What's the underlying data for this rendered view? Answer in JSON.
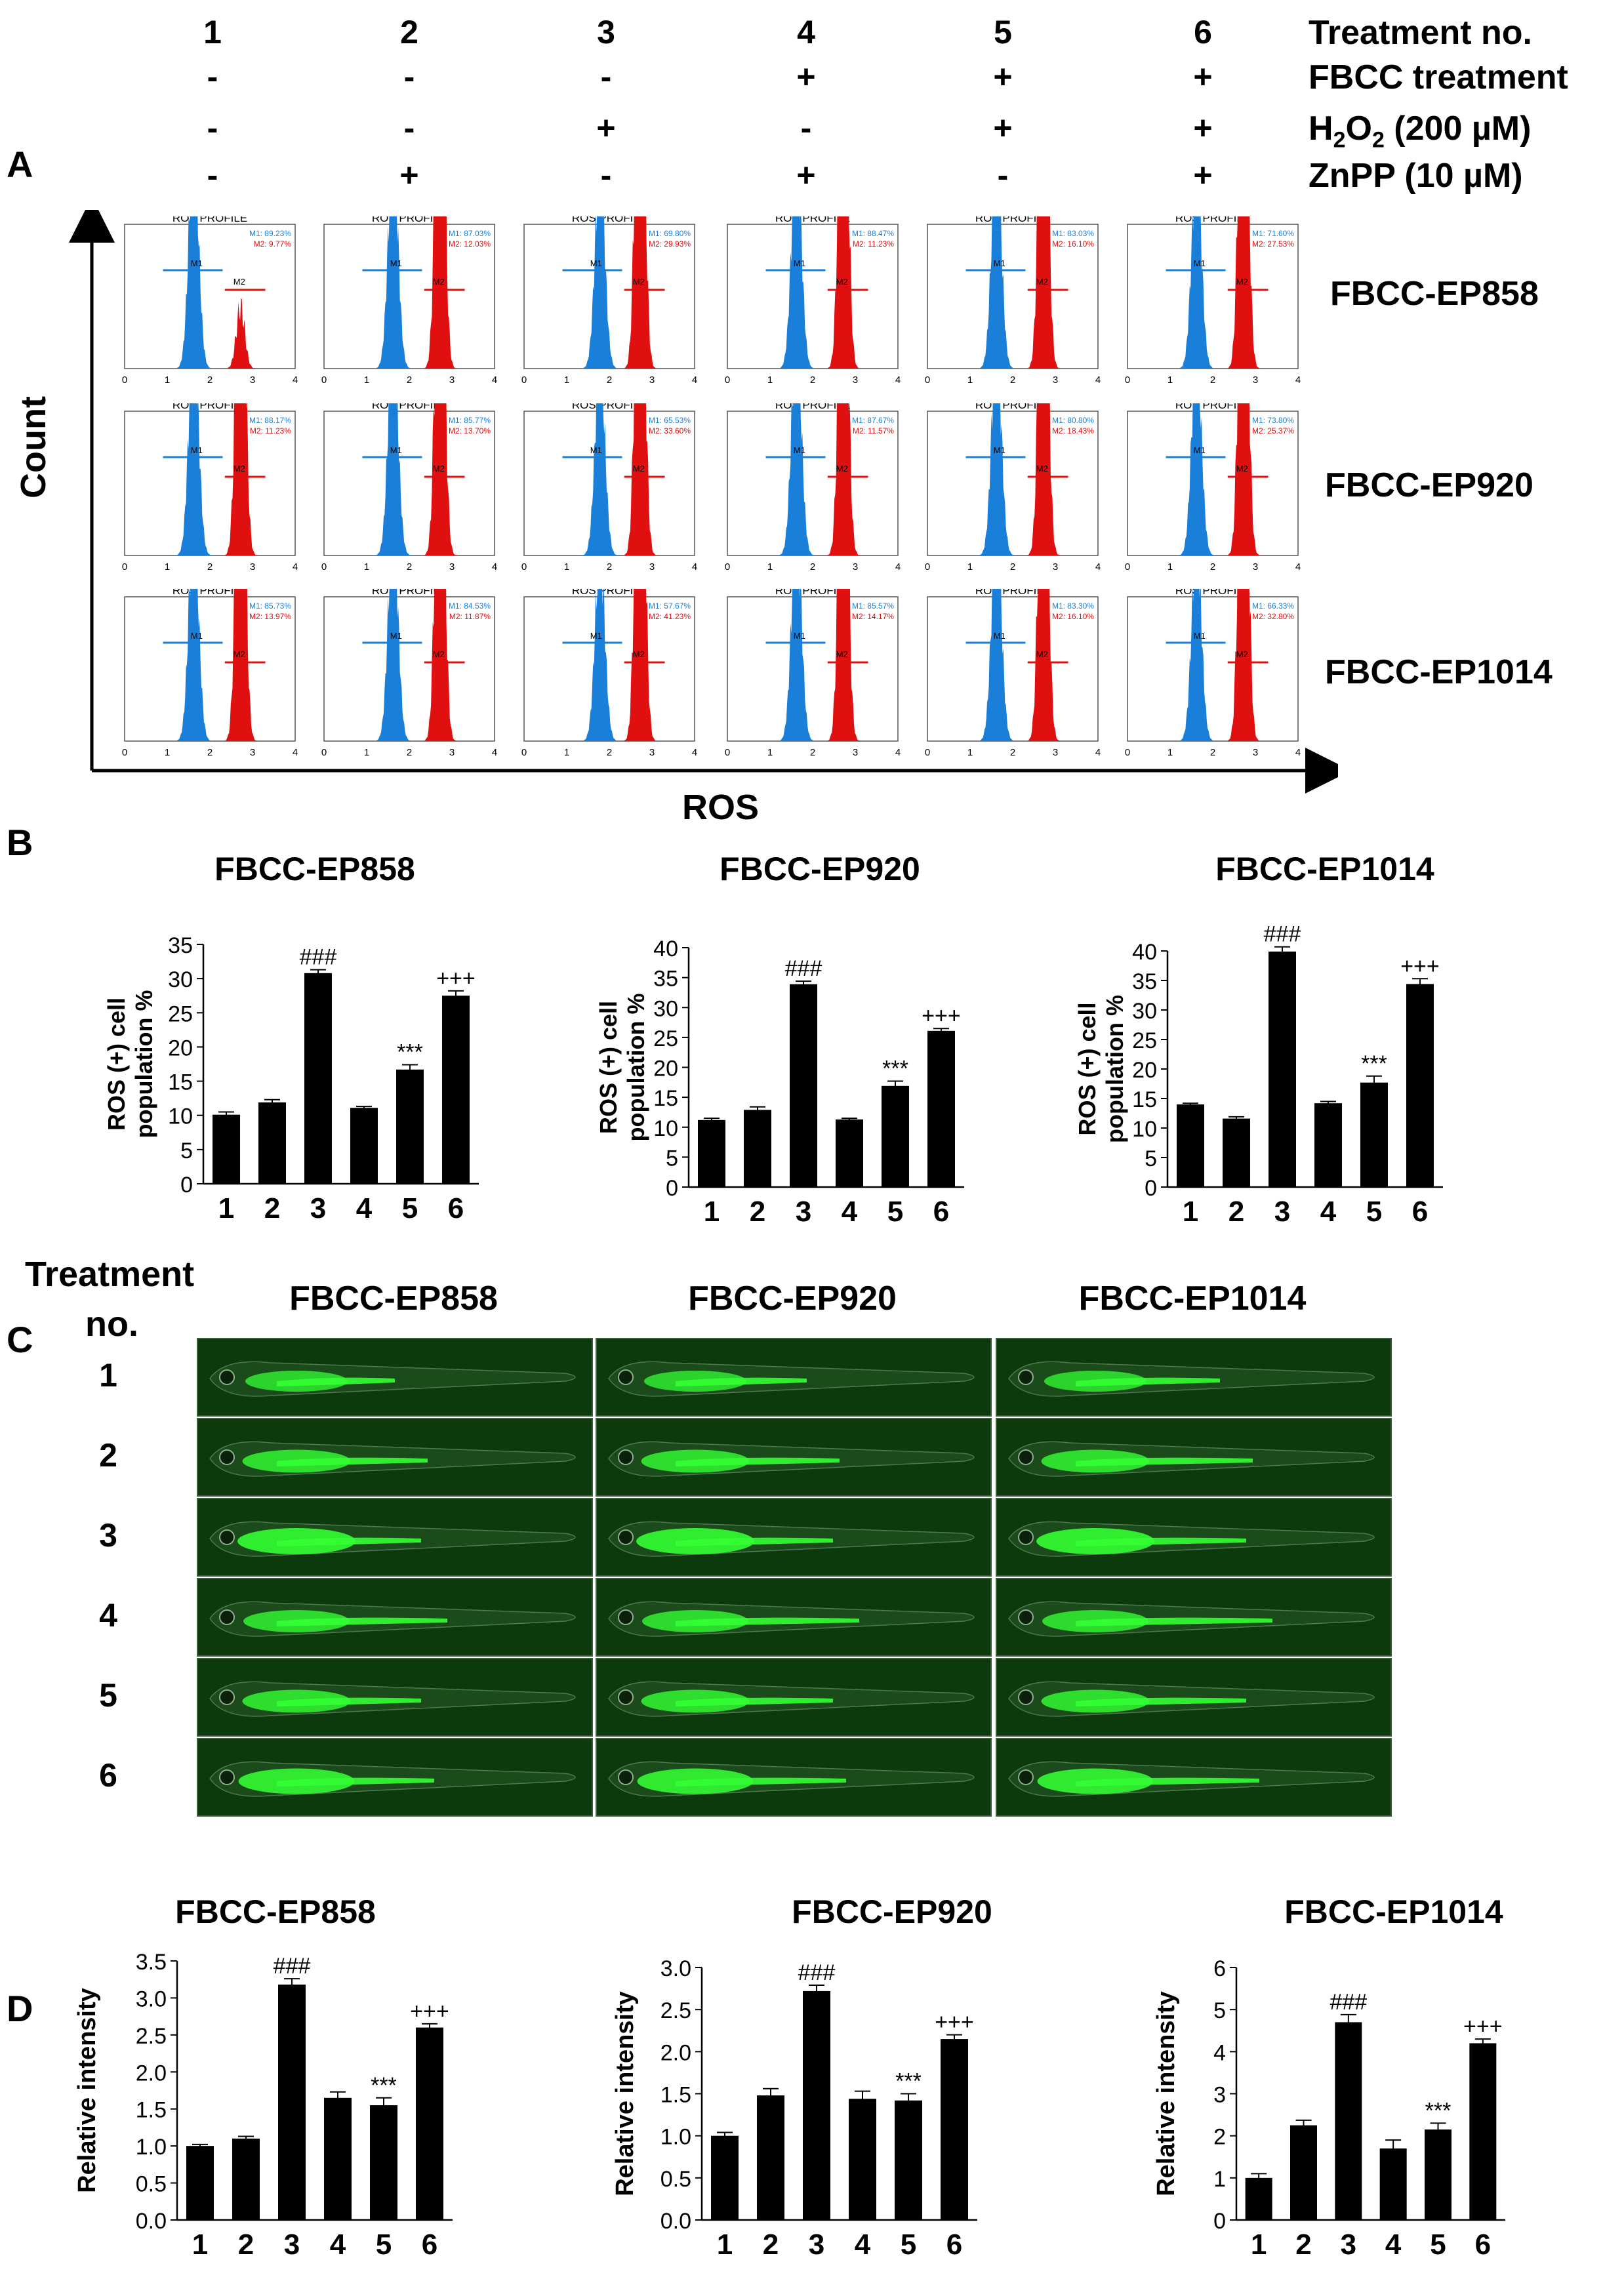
{
  "treatments": {
    "numbers": [
      "1",
      "2",
      "3",
      "4",
      "5",
      "6"
    ],
    "rows": [
      {
        "label": "Treatment no.",
        "values": [
          "1",
          "2",
          "3",
          "4",
          "5",
          "6"
        ]
      },
      {
        "label": "FBCC treatment",
        "values": [
          "-",
          "-",
          "-",
          "+",
          "+",
          "+"
        ]
      },
      {
        "label": "H2O2 (200 µM)",
        "label_main": "H",
        "label_sub1": "2",
        "label_mid": "O",
        "label_sub2": "2",
        "label_tail": " (200 µM)",
        "values": [
          "-",
          "-",
          "+",
          "-",
          "+",
          "+"
        ]
      },
      {
        "label": "ZnPP (10 µM)",
        "values": [
          "-",
          "+",
          "-",
          "+",
          "-",
          "+"
        ]
      }
    ]
  },
  "panelA": {
    "letter": "A",
    "y_axis_label": "Count",
    "x_axis_label": "ROS",
    "histogram_title": "ROS PROFILE",
    "marker1": "M1",
    "marker2": "M2",
    "x_ticks": [
      "0",
      "1",
      "2",
      "3",
      "4"
    ],
    "strains": [
      "FBCC-EP858",
      "FBCC-EP920",
      "FBCC-EP1014"
    ],
    "colors": {
      "m1": "#1a7fd8",
      "m2": "#e01010",
      "green_events": "#1a9a1a"
    },
    "stats": [
      [
        "M1: 89.23%",
        "M2: 9.77%",
        "M1: 87.03%",
        "M2: 12.03%",
        "M1: 69.80%",
        "M2: 29.93%",
        "M1: 88.47%",
        "M2: 11.23%",
        "M1: 83.03%",
        "M2: 16.10%",
        "M1: 71.60%",
        "M2: 27.53%"
      ],
      [
        "M1: 88.17%",
        "M2: 11.23%",
        "M1: 85.77%",
        "M2: 13.70%",
        "M1: 65.53%",
        "M2: 33.60%",
        "M1: 87.67%",
        "M2: 11.57%",
        "M1: 80.80%",
        "M2: 18.43%",
        "M1: 73.80%",
        "M2: 25.37%"
      ],
      [
        "M1: 85.73%",
        "M2: 13.97%",
        "M1: 84.53%",
        "M2: 11.87%",
        "M1: 57.67%",
        "M2: 41.23%",
        "M1: 85.57%",
        "M2: 14.17%",
        "M1: 83.30%",
        "M2: 16.10%",
        "M1: 66.33%",
        "M2: 32.80%"
      ]
    ]
  },
  "panelC": {
    "letter": "C",
    "row_header": "Treatment",
    "row_header2": "no.",
    "strains": [
      "FBCC-EP858",
      "FBCC-EP920",
      "FBCC-EP1014"
    ],
    "rows": [
      "1",
      "2",
      "3",
      "4",
      "5",
      "6"
    ],
    "fluor_color": "#33ff33"
  },
  "chart_data": [
    {
      "panel": "B",
      "type": "bar",
      "title": "FBCC-EP858",
      "ylabel": "ROS (+) cell population %",
      "ylabel1": "ROS (+) cell",
      "ylabel2": "population %",
      "categories": [
        "1",
        "2",
        "3",
        "4",
        "5",
        "6"
      ],
      "values": [
        10.1,
        11.9,
        30.8,
        11.1,
        16.7,
        27.5
      ],
      "errors": [
        0.4,
        0.4,
        0.5,
        0.2,
        0.7,
        0.7
      ],
      "annotations": [
        "",
        "",
        "###",
        "",
        "***",
        "+++"
      ],
      "ylim": [
        0,
        35
      ],
      "yticks": [
        "0",
        "5",
        "10",
        "15",
        "20",
        "25",
        "30",
        "35"
      ]
    },
    {
      "panel": "B",
      "type": "bar",
      "title": "FBCC-EP920",
      "ylabel": "ROS (+) cell population %",
      "ylabel1": "ROS (+) cell",
      "ylabel2": "population %",
      "categories": [
        "1",
        "2",
        "3",
        "4",
        "5",
        "6"
      ],
      "values": [
        11.2,
        12.9,
        33.9,
        11.3,
        16.9,
        26.1
      ],
      "errors": [
        0.3,
        0.5,
        0.5,
        0.2,
        0.8,
        0.4
      ],
      "annotations": [
        "",
        "",
        "###",
        "",
        "***",
        "+++"
      ],
      "ylim": [
        0,
        40
      ],
      "yticks": [
        "0",
        "5",
        "10",
        "15",
        "20",
        "25",
        "30",
        "35",
        "40"
      ]
    },
    {
      "panel": "B",
      "type": "bar",
      "title": "FBCC-EP1014",
      "ylabel": "ROS (+) cell population %",
      "ylabel1": "ROS (+) cell",
      "ylabel2": "population %",
      "categories": [
        "1",
        "2",
        "3",
        "4",
        "5",
        "6"
      ],
      "values": [
        14.0,
        11.6,
        39.9,
        14.2,
        17.7,
        34.4
      ],
      "errors": [
        0.2,
        0.3,
        0.8,
        0.3,
        1.1,
        0.9
      ],
      "annotations": [
        "",
        "",
        "###",
        "",
        "***",
        "+++"
      ],
      "ylim": [
        0,
        40
      ],
      "yticks": [
        "0",
        "5",
        "10",
        "15",
        "20",
        "25",
        "30",
        "35",
        "40"
      ]
    },
    {
      "panel": "D",
      "type": "bar",
      "title": "FBCC-EP858",
      "ylabel": "Relative intensity",
      "categories": [
        "1",
        "2",
        "3",
        "4",
        "5",
        "6"
      ],
      "values": [
        1.0,
        1.1,
        3.18,
        1.65,
        1.55,
        2.6
      ],
      "errors": [
        0.02,
        0.03,
        0.08,
        0.08,
        0.1,
        0.05
      ],
      "annotations": [
        "",
        "",
        "###",
        "",
        "***",
        "+++"
      ],
      "ylim": [
        0,
        3.5
      ],
      "yticks": [
        "0.0",
        "0.5",
        "1.0",
        "1.5",
        "2.0",
        "2.5",
        "3.0",
        "3.5"
      ]
    },
    {
      "panel": "D",
      "type": "bar",
      "title": "FBCC-EP920",
      "ylabel": "Relative intensity",
      "categories": [
        "1",
        "2",
        "3",
        "4",
        "5",
        "6"
      ],
      "values": [
        1.0,
        1.48,
        2.72,
        1.44,
        1.42,
        2.15
      ],
      "errors": [
        0.04,
        0.08,
        0.07,
        0.09,
        0.08,
        0.05
      ],
      "annotations": [
        "",
        "",
        "###",
        "",
        "***",
        "+++"
      ],
      "ylim": [
        0,
        3.0
      ],
      "yticks": [
        "0.0",
        "0.5",
        "1.0",
        "1.5",
        "2.0",
        "2.5",
        "3.0"
      ]
    },
    {
      "panel": "D",
      "type": "bar",
      "title": "FBCC-EP1014",
      "ylabel": "Relative intensity",
      "categories": [
        "1",
        "2",
        "3",
        "4",
        "5",
        "6"
      ],
      "values": [
        1.0,
        2.25,
        4.7,
        1.7,
        2.15,
        4.2
      ],
      "errors": [
        0.1,
        0.12,
        0.18,
        0.2,
        0.15,
        0.1
      ],
      "annotations": [
        "",
        "",
        "###",
        "",
        "***",
        "+++"
      ],
      "ylim": [
        0,
        6
      ],
      "yticks": [
        "0",
        "1",
        "2",
        "3",
        "4",
        "5",
        "6"
      ]
    }
  ],
  "panel_letters": {
    "b": "B",
    "d": "D"
  }
}
